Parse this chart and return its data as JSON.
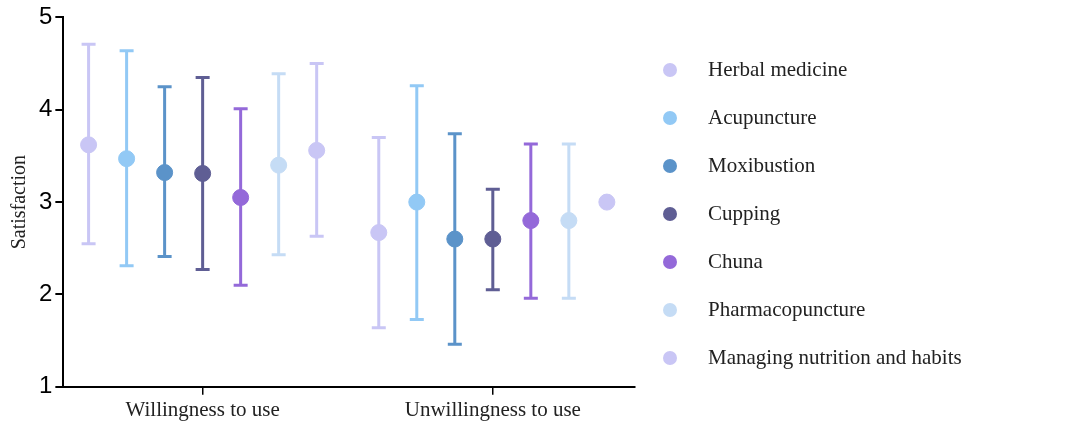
{
  "chart_data": {
    "type": "scatter",
    "ylabel": "Satisfaction",
    "categories": [
      "Willingness to use",
      "Unwillingness to use"
    ],
    "ylim": [
      1,
      5
    ],
    "yticks": [
      1,
      2,
      3,
      4,
      5
    ],
    "grid": false,
    "legend": "right",
    "marker": "circle",
    "series": [
      {
        "name": "Herbal medicine",
        "color": "#c9c6f5",
        "values": [
          3.62,
          2.67
        ],
        "errors": [
          [
            2.55,
            4.71
          ],
          [
            1.64,
            3.7
          ]
        ]
      },
      {
        "name": "Acupuncture",
        "color": "#92c9f5",
        "values": [
          3.47,
          3.0
        ],
        "errors": [
          [
            2.31,
            4.64
          ],
          [
            1.73,
            4.26
          ]
        ]
      },
      {
        "name": "Moxibustion",
        "color": "#5b93c9",
        "values": [
          3.32,
          2.6
        ],
        "errors": [
          [
            2.41,
            4.25
          ],
          [
            1.46,
            3.74
          ]
        ]
      },
      {
        "name": "Cupping",
        "color": "#5f5e94",
        "values": [
          3.31,
          2.6
        ],
        "errors": [
          [
            2.27,
            4.35
          ],
          [
            2.05,
            3.14
          ]
        ]
      },
      {
        "name": "Chuna",
        "color": "#9469d9",
        "values": [
          3.05,
          2.8
        ],
        "errors": [
          [
            2.1,
            4.01
          ],
          [
            1.96,
            3.63
          ]
        ]
      },
      {
        "name": "Pharmacopuncture",
        "color": "#c5dcf5",
        "values": [
          3.4,
          2.8
        ],
        "errors": [
          [
            2.43,
            4.39
          ],
          [
            1.96,
            3.63
          ]
        ]
      },
      {
        "name": "Managing nutrition and habits",
        "color": "#c9c6f5",
        "values": [
          3.56,
          3.0
        ],
        "errors": [
          [
            2.63,
            4.5
          ],
          null
        ]
      }
    ]
  }
}
